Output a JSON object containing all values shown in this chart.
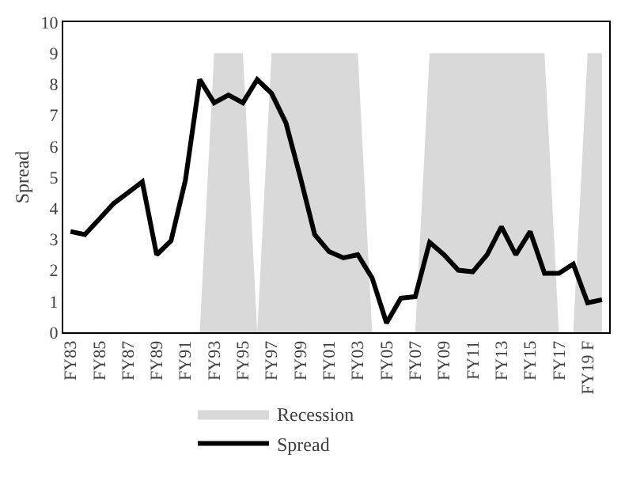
{
  "chart_data": {
    "type": "line",
    "ylabel": "Spread",
    "categories": [
      "FY83",
      null,
      "FY85",
      null,
      "FY87",
      null,
      "FY89",
      null,
      "FY91",
      null,
      "FY93",
      null,
      "FY95",
      null,
      "FY97",
      null,
      "FY99",
      null,
      "FY01",
      null,
      "FY03",
      null,
      "FY05",
      null,
      "FY07",
      null,
      "FY09",
      null,
      "FY11",
      null,
      "FY13",
      null,
      "FY15",
      null,
      "FY17",
      null,
      "FY19 F",
      null
    ],
    "ylim": [
      0,
      10
    ],
    "yticks": [
      0,
      1,
      2,
      3,
      4,
      5,
      6,
      7,
      8,
      9,
      10
    ],
    "grid": false,
    "legend": "bottom",
    "series": [
      {
        "name": "Recession",
        "type": "area",
        "color": "#d9d9d9",
        "values": [
          0,
          0,
          0,
          0,
          0,
          0,
          0,
          0,
          0,
          0,
          9,
          9,
          9,
          0,
          9,
          9,
          9,
          9,
          9,
          9,
          9,
          0,
          0,
          0,
          0,
          9,
          9,
          9,
          9,
          9,
          9,
          9,
          9,
          9,
          0,
          0,
          9,
          9
        ]
      },
      {
        "name": "Spread",
        "color": "#000000",
        "values": [
          3.25,
          3.15,
          3.65,
          4.15,
          4.5,
          4.85,
          2.5,
          2.95,
          4.9,
          8.15,
          7.4,
          7.65,
          7.4,
          8.15,
          7.7,
          6.75,
          5.0,
          3.15,
          2.6,
          2.4,
          2.5,
          1.75,
          0.3,
          1.1,
          1.15,
          2.9,
          2.5,
          2.0,
          1.95,
          2.5,
          3.4,
          2.5,
          3.25,
          1.9,
          1.9,
          2.2,
          0.95,
          1.05
        ]
      }
    ]
  }
}
